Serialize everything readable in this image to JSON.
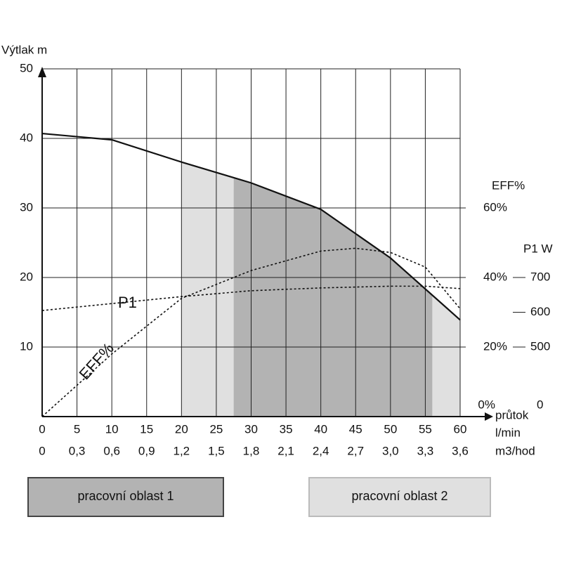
{
  "chart_data": {
    "type": "line",
    "y_axis_label": "Výtlak m",
    "y2_axis_label": "EFF%",
    "y3_axis_label": "P1 W",
    "y3_origin_label": "0",
    "x_axis_label": "průtok",
    "x_unit_label": "l/min",
    "x2_unit_label": "m3/hod",
    "xlim": [
      0,
      60
    ],
    "xticks": [
      0,
      5,
      10,
      15,
      20,
      25,
      30,
      35,
      40,
      45,
      50,
      55,
      60
    ],
    "x2_tick_labels": [
      "0",
      "0,3",
      "0,6",
      "0,9",
      "1,2",
      "1,5",
      "1,8",
      "2,1",
      "2,4",
      "2,7",
      "3,0",
      "3,3",
      "3,6"
    ],
    "ylim": [
      0,
      50
    ],
    "yticks": [
      10,
      20,
      30,
      40,
      50
    ],
    "y2lim": [
      0,
      100
    ],
    "y2ticks": [
      {
        "value": 0,
        "label": "0%"
      },
      {
        "value": 20,
        "label": "20%"
      },
      {
        "value": 40,
        "label": "40%"
      },
      {
        "value": 60,
        "label": "60%"
      }
    ],
    "y3lim": [
      300,
      1300
    ],
    "y3ticks": [
      500,
      600,
      700
    ],
    "grid": true,
    "series": [
      {
        "name": "Výtlak",
        "axis": "y",
        "color": "#111111",
        "style": "solid",
        "x": [
          0,
          10,
          20,
          30,
          40,
          50,
          60
        ],
        "values": [
          40.7,
          39.8,
          36.6,
          33.6,
          29.8,
          22.8,
          13.9
        ]
      },
      {
        "name": "EFF%",
        "axis": "y2",
        "color": "#111111",
        "style": "dotted",
        "x": [
          0,
          10,
          20,
          30,
          40,
          45,
          50,
          55,
          60
        ],
        "values": [
          0,
          18,
          34,
          42,
          47.6,
          48.4,
          47.2,
          43,
          31
        ]
      },
      {
        "name": "P1",
        "axis": "y3",
        "color": "#111111",
        "style": "dotted",
        "x": [
          0,
          10,
          20,
          30,
          40,
          50,
          55,
          60
        ],
        "values": [
          605,
          625,
          645,
          662,
          670,
          675,
          675,
          668
        ]
      }
    ],
    "regions": [
      {
        "name": "pracovní oblast 2",
        "color": "#e0e0e0",
        "x": [
          20,
          60
        ]
      },
      {
        "name": "pracovní oblast 1",
        "color": "#b3b3b3",
        "x": [
          27.5,
          56
        ]
      }
    ]
  }
}
